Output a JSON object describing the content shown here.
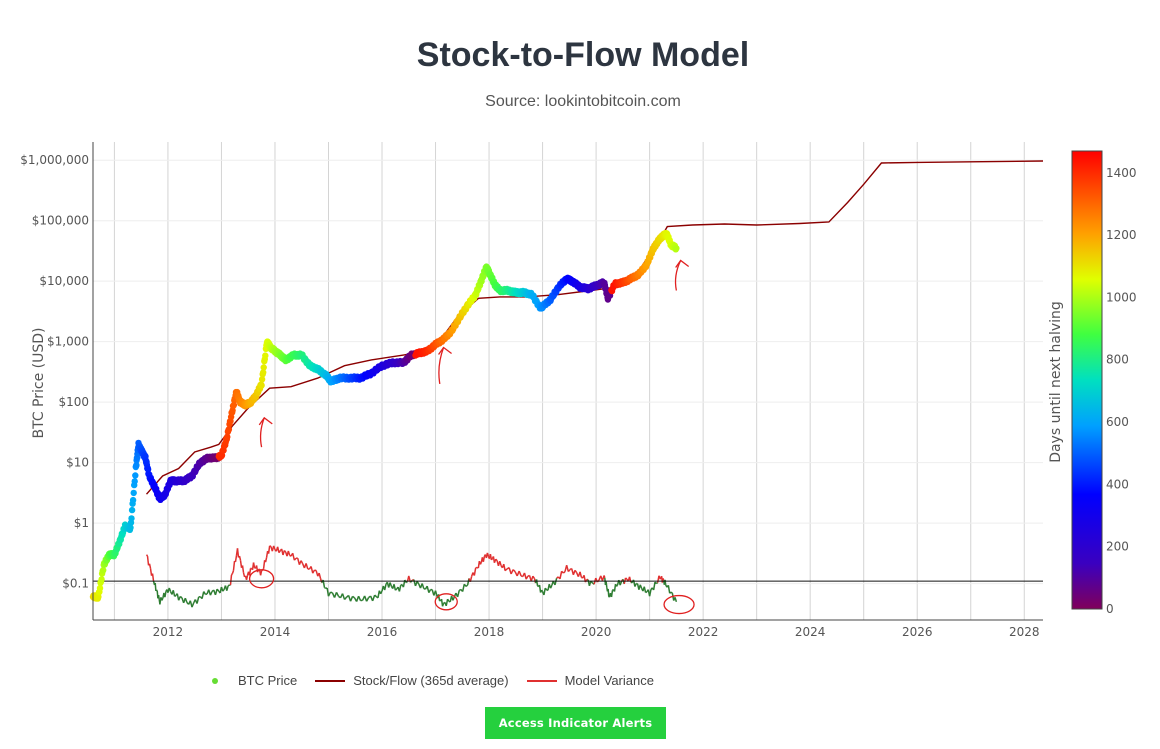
{
  "header": {
    "title": "Stock-to-Flow Model",
    "subtitle": "Source: lookintobitcoin.com"
  },
  "chart_data": {
    "type": "line",
    "title": "Stock-to-Flow Model",
    "subtitle": "Source: lookintobitcoin.com",
    "ylabel": "BTC Price (USD)",
    "yscale": "log",
    "ylim": [
      0.025,
      2000000
    ],
    "xlim": [
      2010.6,
      2028.35
    ],
    "x_ticks": [
      2012,
      2014,
      2016,
      2018,
      2020,
      2022,
      2024,
      2026,
      2028
    ],
    "y_ticks": [
      {
        "value": 0.1,
        "label": "$0.1"
      },
      {
        "value": 1,
        "label": "$1"
      },
      {
        "value": 10,
        "label": "$10"
      },
      {
        "value": 100,
        "label": "$100"
      },
      {
        "value": 1000,
        "label": "$1,000"
      },
      {
        "value": 10000,
        "label": "$10,000"
      },
      {
        "value": 100000,
        "label": "$100,000"
      },
      {
        "value": 1000000,
        "label": "$1,000,000"
      }
    ],
    "grid": true,
    "reference_line": 0.11,
    "colorbar": {
      "title": "Days until next halving",
      "range": [
        0,
        1470
      ],
      "ticks": [
        0,
        200,
        400,
        600,
        800,
        1000,
        1200,
        1400
      ]
    },
    "legend_position": "bottom",
    "series": [
      {
        "name": "BTC Price",
        "kind": "colored-scatter",
        "x": [
          2010.6,
          2010.7,
          2010.8,
          2010.9,
          2011.0,
          2011.1,
          2011.2,
          2011.3,
          2011.4,
          2011.45,
          2011.52,
          2011.58,
          2011.65,
          2011.75,
          2011.85,
          2011.95,
          2012.05,
          2012.15,
          2012.3,
          2012.45,
          2012.6,
          2012.75,
          2012.9,
          2013.0,
          2013.1,
          2013.2,
          2013.28,
          2013.35,
          2013.45,
          2013.55,
          2013.65,
          2013.75,
          2013.85,
          2013.92,
          2014.0,
          2014.1,
          2014.2,
          2014.35,
          2014.5,
          2014.65,
          2014.8,
          2014.95,
          2015.05,
          2015.2,
          2015.4,
          2015.6,
          2015.8,
          2016.0,
          2016.2,
          2016.4,
          2016.55,
          2016.7,
          2016.85,
          2017.0,
          2017.15,
          2017.3,
          2017.45,
          2017.6,
          2017.75,
          2017.85,
          2017.95,
          2018.0,
          2018.1,
          2018.2,
          2018.35,
          2018.5,
          2018.65,
          2018.8,
          2018.95,
          2019.0,
          2019.15,
          2019.3,
          2019.45,
          2019.55,
          2019.7,
          2019.85,
          2020.0,
          2020.15,
          2020.22,
          2020.35,
          2020.5,
          2020.65,
          2020.8,
          2020.95,
          2021.05,
          2021.15,
          2021.25,
          2021.32,
          2021.4,
          2021.5
        ],
        "y": [
          0.06,
          0.06,
          0.2,
          0.3,
          0.3,
          0.5,
          0.9,
          0.8,
          8,
          20,
          15,
          12,
          6,
          4,
          2.5,
          3,
          5,
          5,
          5,
          6,
          10,
          12,
          12,
          13,
          25,
          70,
          150,
          100,
          90,
          100,
          130,
          200,
          1000,
          800,
          700,
          600,
          500,
          600,
          600,
          400,
          350,
          280,
          220,
          250,
          250,
          250,
          300,
          400,
          450,
          450,
          600,
          650,
          700,
          900,
          1100,
          1500,
          2500,
          4000,
          6000,
          10000,
          17000,
          14000,
          9000,
          7000,
          7000,
          6500,
          6500,
          6000,
          3700,
          3800,
          5000,
          8000,
          11000,
          10000,
          8000,
          7500,
          8500,
          9500,
          5200,
          9000,
          9500,
          11000,
          13000,
          19000,
          32000,
          45000,
          57000,
          60000,
          40000,
          35000
        ],
        "days": [
          1120,
          1080,
          1000,
          900,
          850,
          780,
          700,
          650,
          570,
          500,
          470,
          440,
          400,
          360,
          320,
          290,
          260,
          230,
          190,
          150,
          110,
          70,
          30,
          1400,
          1370,
          1330,
          1290,
          1260,
          1220,
          1180,
          1150,
          1100,
          1060,
          1030,
          990,
          950,
          910,
          860,
          820,
          760,
          710,
          650,
          600,
          540,
          470,
          400,
          330,
          260,
          190,
          110,
          40,
          1440,
          1400,
          1340,
          1280,
          1220,
          1160,
          1100,
          1040,
          990,
          950,
          930,
          890,
          850,
          800,
          740,
          680,
          620,
          580,
          560,
          500,
          440,
          380,
          340,
          280,
          220,
          160,
          100,
          70,
          1440,
          1380,
          1320,
          1260,
          1200,
          1160,
          1130,
          1100,
          1070,
          1050,
          1010
        ]
      },
      {
        "name": "Stock/Flow (365d average)",
        "kind": "line",
        "color": "#8b0000",
        "x": [
          2011.6,
          2011.9,
          2012.2,
          2012.5,
          2012.8,
          2012.95,
          2013.2,
          2013.5,
          2013.9,
          2014.3,
          2014.8,
          2015.3,
          2015.8,
          2016.4,
          2016.85,
          2017.1,
          2017.4,
          2017.8,
          2018.2,
          2018.7,
          2019.3,
          2019.9,
          2020.4,
          2020.8,
          2021.2,
          2021.33,
          2021.8,
          2022.4,
          2023.0,
          2023.8,
          2024.35,
          2024.7,
          2025.0,
          2025.33,
          2026.0,
          2027.0,
          2028.35
        ],
        "y": [
          3,
          6,
          8,
          15,
          18,
          20,
          40,
          80,
          170,
          180,
          250,
          400,
          500,
          600,
          700,
          1100,
          2500,
          5200,
          5500,
          5500,
          6000,
          7000,
          8000,
          15000,
          50000,
          80000,
          85000,
          88000,
          85000,
          90000,
          95000,
          200000,
          400000,
          900000,
          920000,
          940000,
          970000
        ]
      },
      {
        "name": "Model Variance",
        "kind": "line",
        "color": "#e03030",
        "secondary_color": "#2e7d32",
        "x": [
          2011.6,
          2011.75,
          2011.85,
          2012.0,
          2012.2,
          2012.45,
          2012.7,
          2012.95,
          2013.15,
          2013.3,
          2013.45,
          2013.6,
          2013.75,
          2013.9,
          2014.1,
          2014.3,
          2014.55,
          2014.8,
          2015.0,
          2015.3,
          2015.6,
          2015.9,
          2016.1,
          2016.3,
          2016.5,
          2016.75,
          2017.0,
          2017.15,
          2017.35,
          2017.6,
          2017.8,
          2017.95,
          2018.1,
          2018.3,
          2018.6,
          2018.85,
          2019.0,
          2019.2,
          2019.45,
          2019.7,
          2019.9,
          2020.15,
          2020.25,
          2020.4,
          2020.6,
          2020.8,
          2021.0,
          2021.2,
          2021.3,
          2021.5
        ],
        "y": [
          0.3,
          0.1,
          0.05,
          0.08,
          0.06,
          0.045,
          0.07,
          0.075,
          0.09,
          0.35,
          0.12,
          0.2,
          0.15,
          0.4,
          0.35,
          0.3,
          0.2,
          0.15,
          0.07,
          0.06,
          0.055,
          0.06,
          0.1,
          0.08,
          0.12,
          0.09,
          0.07,
          0.045,
          0.06,
          0.1,
          0.2,
          0.3,
          0.25,
          0.18,
          0.14,
          0.12,
          0.07,
          0.1,
          0.18,
          0.14,
          0.1,
          0.13,
          0.06,
          0.1,
          0.12,
          0.09,
          0.07,
          0.13,
          0.1,
          0.05
        ]
      }
    ]
  },
  "legend": [
    {
      "label": "BTC Price",
      "color": "#66dd33",
      "kind": "dot"
    },
    {
      "label": "Stock/Flow (365d average)",
      "color": "#8b0000",
      "kind": "line"
    },
    {
      "label": "Model Variance",
      "color": "#e03030",
      "kind": "line"
    }
  ],
  "actions": {
    "alerts_button": "Access Indicator Alerts"
  }
}
